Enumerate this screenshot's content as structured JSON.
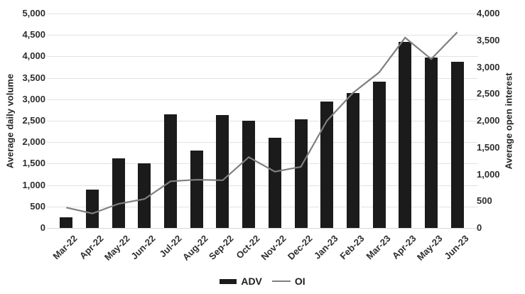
{
  "chart_data": {
    "type": "combo-bar-line",
    "categories": [
      "Mar-22",
      "Apr-22",
      "May-22",
      "Jun-22",
      "Jul-22",
      "Aug-22",
      "Sep-22",
      "Oct-22",
      "Nov-22",
      "Dec-22",
      "Jan-23",
      "Feb-23",
      "Mar-23",
      "Apr-23",
      "May-23",
      "Jun-23"
    ],
    "series": [
      {
        "name": "ADV",
        "kind": "bar",
        "axis": "left",
        "color": "#1b1b1b",
        "values": [
          250,
          900,
          1620,
          1500,
          2650,
          1810,
          2640,
          2500,
          2110,
          2530,
          2950,
          3150,
          3410,
          4330,
          3980,
          3870
        ]
      },
      {
        "name": "OI",
        "kind": "line",
        "axis": "right",
        "color": "#7f7f7f",
        "values": [
          380,
          270,
          450,
          540,
          870,
          900,
          890,
          1320,
          1050,
          1140,
          2000,
          2520,
          2900,
          3550,
          3150,
          3650
        ]
      }
    ],
    "left_axis": {
      "title": "Average daily volume",
      "min": 0,
      "max": 5000,
      "step": 500,
      "tick_values": [
        0,
        500,
        1000,
        1500,
        2000,
        2500,
        3000,
        3500,
        4000,
        4500,
        5000
      ],
      "tick_labels": [
        "0",
        "500",
        "1,000",
        "1,500",
        "2,000",
        "2,500",
        "3,000",
        "3,500",
        "4,000",
        "4,500",
        "5,000"
      ]
    },
    "right_axis": {
      "title": "Average open interest",
      "min": 0,
      "max": 4000,
      "step": 500,
      "tick_values": [
        0,
        500,
        1000,
        1500,
        2000,
        2500,
        3000,
        3500,
        4000
      ],
      "tick_labels": [
        "0",
        "500",
        "1,000",
        "1,500",
        "2,000",
        "2,500",
        "3,000",
        "3,500",
        "4,000"
      ]
    },
    "legend": {
      "position": "bottom-center",
      "items": [
        {
          "label": "ADV",
          "swatch": "thick-bar"
        },
        {
          "label": "OI",
          "swatch": "line"
        }
      ]
    },
    "grid": "horizontal-only"
  },
  "colors": {
    "bar": "#1b1b1b",
    "line": "#7f7f7f",
    "grid": "#e2e2e2",
    "tick_text": "#2e2e2e",
    "background": "#ffffff"
  }
}
